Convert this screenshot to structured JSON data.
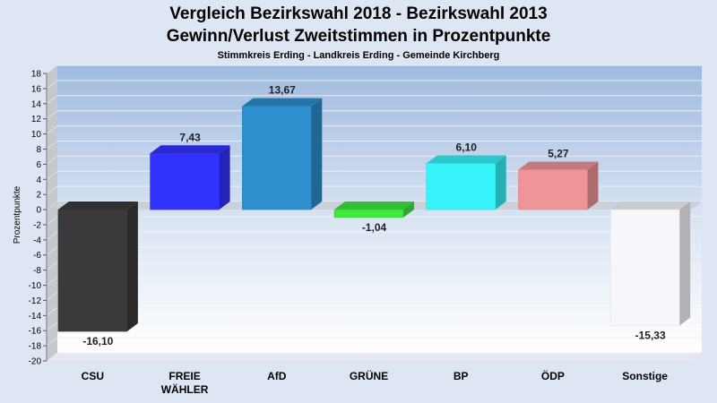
{
  "chart_data": {
    "type": "bar",
    "title": "Vergleich Bezirkswahl 2018 - Bezirkswahl 2013",
    "subtitle": "Gewinn/Verlust Zweitstimmen in Prozentpunkte",
    "caption": "Stimmkreis Erding - Landkreis Erding - Gemeinde Kirchberg",
    "ylabel": "Prozentpunkte",
    "xlabel": "",
    "ylim": [
      -20,
      18
    ],
    "ytick_step": 2,
    "grid": true,
    "categories": [
      [
        "CSU"
      ],
      [
        "FREIE",
        "WÄHLER"
      ],
      [
        "AfD"
      ],
      [
        "GRÜNE"
      ],
      [
        "BP"
      ],
      [
        "ÖDP"
      ],
      [
        "Sonstige"
      ]
    ],
    "values": [
      -16.1,
      7.43,
      13.67,
      -1.04,
      6.1,
      5.27,
      -15.33
    ],
    "value_labels": [
      "-16,10",
      "7,43",
      "13,67",
      "-1,04",
      "6,10",
      "5,27",
      "-15,33"
    ],
    "colors": [
      "#3a3a3c",
      "#3232ff",
      "#2e8fce",
      "#3ee83e",
      "#36f4fa",
      "#ef9598",
      "#f6f7fb"
    ]
  }
}
